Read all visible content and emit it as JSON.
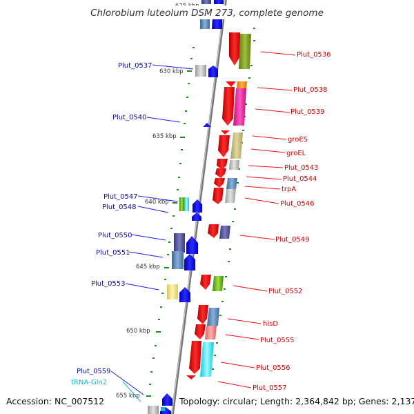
{
  "title": "Chlorobium luteolum DSM 273, complete genome",
  "footer": {
    "accession": "Accession: NC_007512",
    "summary": "Topology: circular; Length: 2,364,842 bp; Genes: 2,137"
  },
  "ticks": [
    "625 kbp",
    "630 kbp",
    "635 kbp",
    "640 kbp",
    "645 kbp",
    "650 kbp",
    "655 kbp"
  ],
  "labels_forward": [
    "Plut_0536",
    "Plut_0538",
    "Plut_0539",
    "groES",
    "groEL",
    "Plut_0543",
    "Plut_0544",
    "trpA",
    "Plut_0546",
    "Plut_0549",
    "Plut_0552",
    "hisD",
    "Plut_0555",
    "Plut_0556",
    "Plut_0557"
  ],
  "labels_reverse": [
    "Plut_0537",
    "Plut_0540",
    "Plut_0547",
    "Plut_0548",
    "Plut_0550",
    "Plut_0551",
    "Plut_0553",
    "Plut_0559",
    "tRNA-Gln2"
  ],
  "colors": {
    "forward_cds": "#ee1111",
    "reverse_cds": "#1a1aee",
    "label_forward": "#cc0000",
    "label_reverse": "#0a0a9a",
    "trna": "#14b4d4",
    "backbone": "#888888",
    "gc_dots": "#1a8a1a"
  }
}
